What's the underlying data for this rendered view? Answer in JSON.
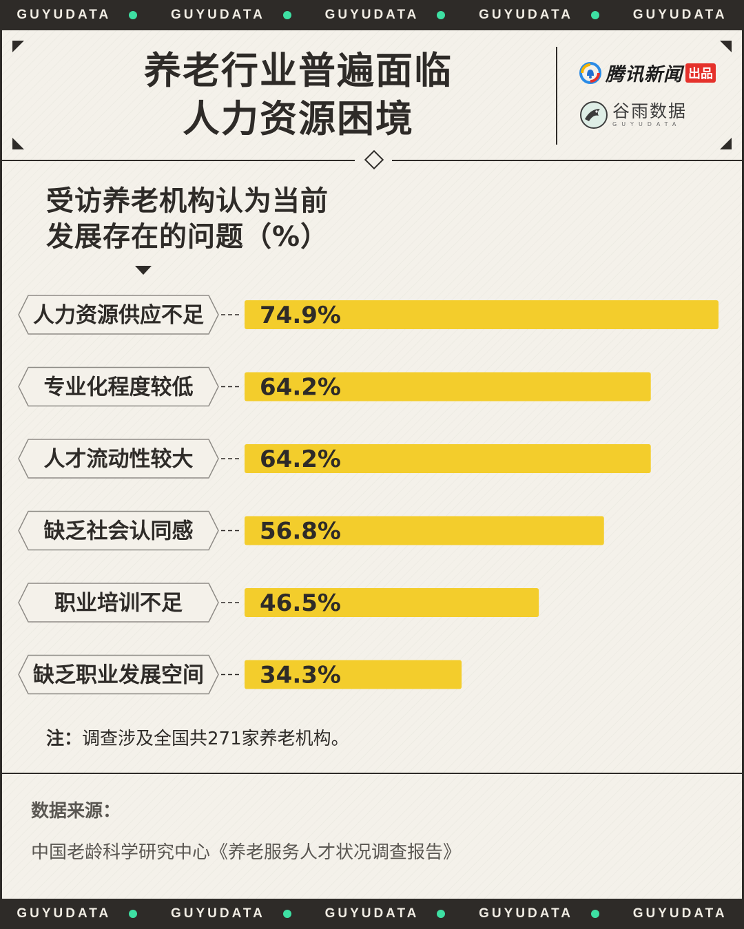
{
  "strip": {
    "items": [
      "GUYUDATA",
      "GUYUDATA",
      "GUYUDATA",
      "GUYUDATA",
      "GUYUDATA"
    ],
    "dot_color": "#3ee0a3"
  },
  "header": {
    "title_line1": "养老行业普遍面临",
    "title_line2": "人力资源困境",
    "logo_tencent": {
      "name": "腾讯新闻",
      "tag": "出品",
      "icon": "tencent-news-bell-icon"
    },
    "logo_guyu": {
      "name": "谷雨数据",
      "sub": "GUYUDATA",
      "icon": "guyu-bird-icon"
    }
  },
  "subtitle": {
    "line1": "受访养老机构认为当前",
    "line2": "发展存在的问题（%）"
  },
  "chart_data": {
    "type": "bar",
    "orientation": "horizontal",
    "categories": [
      "人力资源供应不足",
      "专业化程度较低",
      "人才流动性较大",
      "缺乏社会认同感",
      "职业培训不足",
      "缺乏职业发展空间"
    ],
    "values": [
      74.9,
      64.2,
      64.2,
      56.8,
      46.5,
      34.3
    ],
    "value_labels": [
      "74.9%",
      "64.2%",
      "64.2%",
      "56.8%",
      "46.5%",
      "34.3%"
    ],
    "unit": "%",
    "bar_color": "#f3cd2c",
    "grid": false,
    "legend": "none"
  },
  "note": {
    "label": "注：",
    "text": "调查涉及全国共271家养老机构。"
  },
  "source": {
    "label": "数据来源：",
    "text": "中国老龄科学研究中心《养老服务人才状况调查报告》"
  },
  "colors": {
    "frame": "#2e2b28",
    "background": "#f4f1ea",
    "accent_green": "#3ee0a3",
    "bar": "#f3cd2c"
  }
}
